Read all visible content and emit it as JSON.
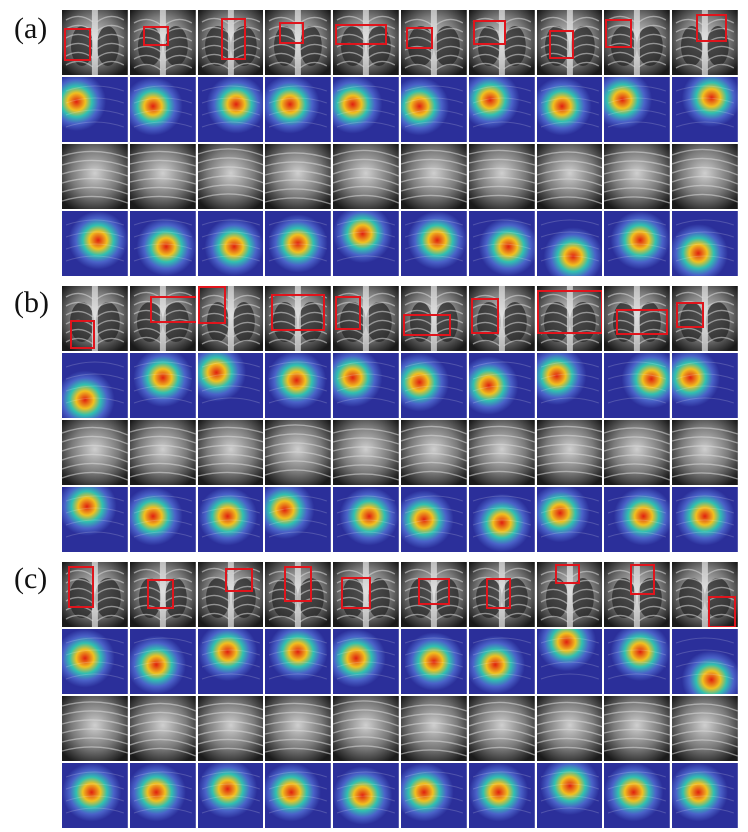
{
  "panels": [
    {
      "label": "(a)",
      "key": "a"
    },
    {
      "label": "(b)",
      "key": "b"
    },
    {
      "label": "(c)",
      "key": "c"
    }
  ],
  "figure_kind": "chest-xray-grad-cam-grid",
  "row_types": [
    "full-xray-with-bbox",
    "grad-cam-heatmap",
    "cropped-xray",
    "cropped-grad-cam-heatmap"
  ],
  "colors": {
    "bbox": "#e0141c",
    "heatmap_low": "#2b2f9a",
    "heatmap_mid": "#30c0b0",
    "heatmap_high": "#e02010",
    "xray_dark": "#0b0b0b",
    "xray_light": "#d9d9d9"
  }
}
